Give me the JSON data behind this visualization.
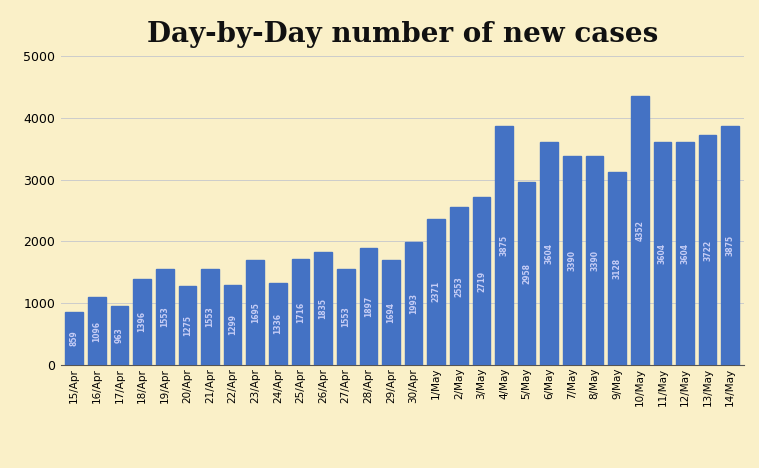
{
  "title": "Day-by-Day number of new cases",
  "background_color": "#FAF0C8",
  "bar_color": "#4472C4",
  "categories": [
    "15/Apr",
    "16/Apr",
    "17/Apr",
    "18/Apr",
    "19/Apr",
    "20/Apr",
    "21/Apr",
    "22/Apr",
    "23/Apr",
    "24/Apr",
    "25/Apr",
    "26/Apr",
    "27/Apr",
    "28/Apr",
    "29/Apr",
    "30/Apr",
    "1/May",
    "2/May",
    "3/May",
    "4/May",
    "5/May",
    "6/May",
    "7/May",
    "8/May",
    "9/May",
    "10/May",
    "11/May",
    "12/May",
    "13/May",
    "14/May"
  ],
  "values": [
    859,
    1096,
    963,
    1396,
    1553,
    1275,
    1553,
    1299,
    1695,
    1336,
    1716,
    1835,
    1553,
    1897,
    1694,
    1993,
    2371,
    2553,
    2719,
    3875,
    2958,
    3604,
    3390,
    3390,
    3128,
    4352,
    3604,
    3604,
    3722,
    3875
  ],
  "ylim": [
    0,
    5000
  ],
  "yticks": [
    0,
    1000,
    2000,
    3000,
    4000,
    5000
  ],
  "grid_color": "#CCCCCC",
  "title_fontsize": 20,
  "xlabel_fontsize": 7.5,
  "ylabel_fontsize": 9,
  "bar_label_fontsize": 5.5,
  "bar_label_color": "#DDDDFF"
}
